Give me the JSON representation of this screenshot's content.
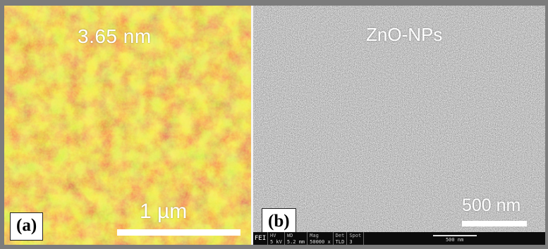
{
  "panel_a": {
    "tag": "(a)",
    "height_label": "3.65 nm",
    "scale_label": "1 µm",
    "colors": {
      "bright": "#e7df2b",
      "mid": "#c9a11c",
      "dark": "#9a2a10"
    }
  },
  "panel_b": {
    "tag": "(b)",
    "material_label": "ZnO-NPs",
    "scale_label": "500 nm",
    "info_bar": {
      "logo": "FEI",
      "columns": [
        {
          "header": "HV",
          "value": "5 kV"
        },
        {
          "header": "WD",
          "value": "5.2 mm"
        },
        {
          "header": "Mag",
          "value": "50000 x"
        },
        {
          "header": "Det",
          "value": "TLD"
        },
        {
          "header": "Spot",
          "value": "3"
        }
      ],
      "scale_label": "500 nm"
    }
  }
}
